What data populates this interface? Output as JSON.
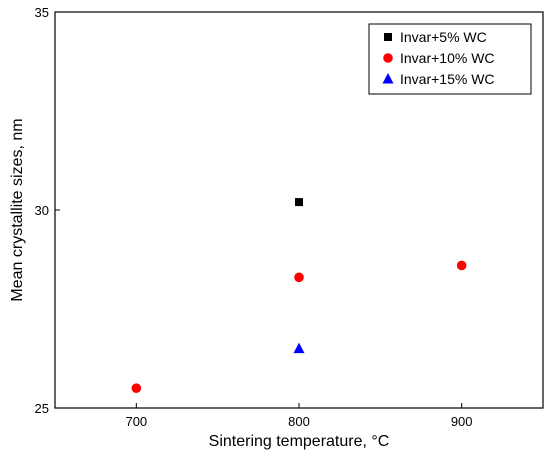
{
  "chart_data": {
    "type": "scatter",
    "xlabel": "Sintering temperature, °C",
    "ylabel": "Mean crystallite sizes, nm",
    "xlim": [
      650,
      950
    ],
    "ylim": [
      25,
      35
    ],
    "x_ticks": [
      "700",
      "800",
      "900"
    ],
    "y_ticks": [
      "25",
      "30",
      "35"
    ],
    "grid": false,
    "legend_position": "top-right",
    "series": [
      {
        "name": "Invar+5% WC",
        "marker": "square",
        "color": "#000000",
        "x": [
          800
        ],
        "y": [
          30.2
        ]
      },
      {
        "name": "Invar+10% WC",
        "marker": "circle",
        "color": "#ff0000",
        "x": [
          700,
          800,
          900
        ],
        "y": [
          25.5,
          28.3,
          28.6
        ]
      },
      {
        "name": "Invar+15% WC",
        "marker": "triangle",
        "color": "#0000ff",
        "x": [
          800
        ],
        "y": [
          26.5
        ]
      }
    ]
  }
}
